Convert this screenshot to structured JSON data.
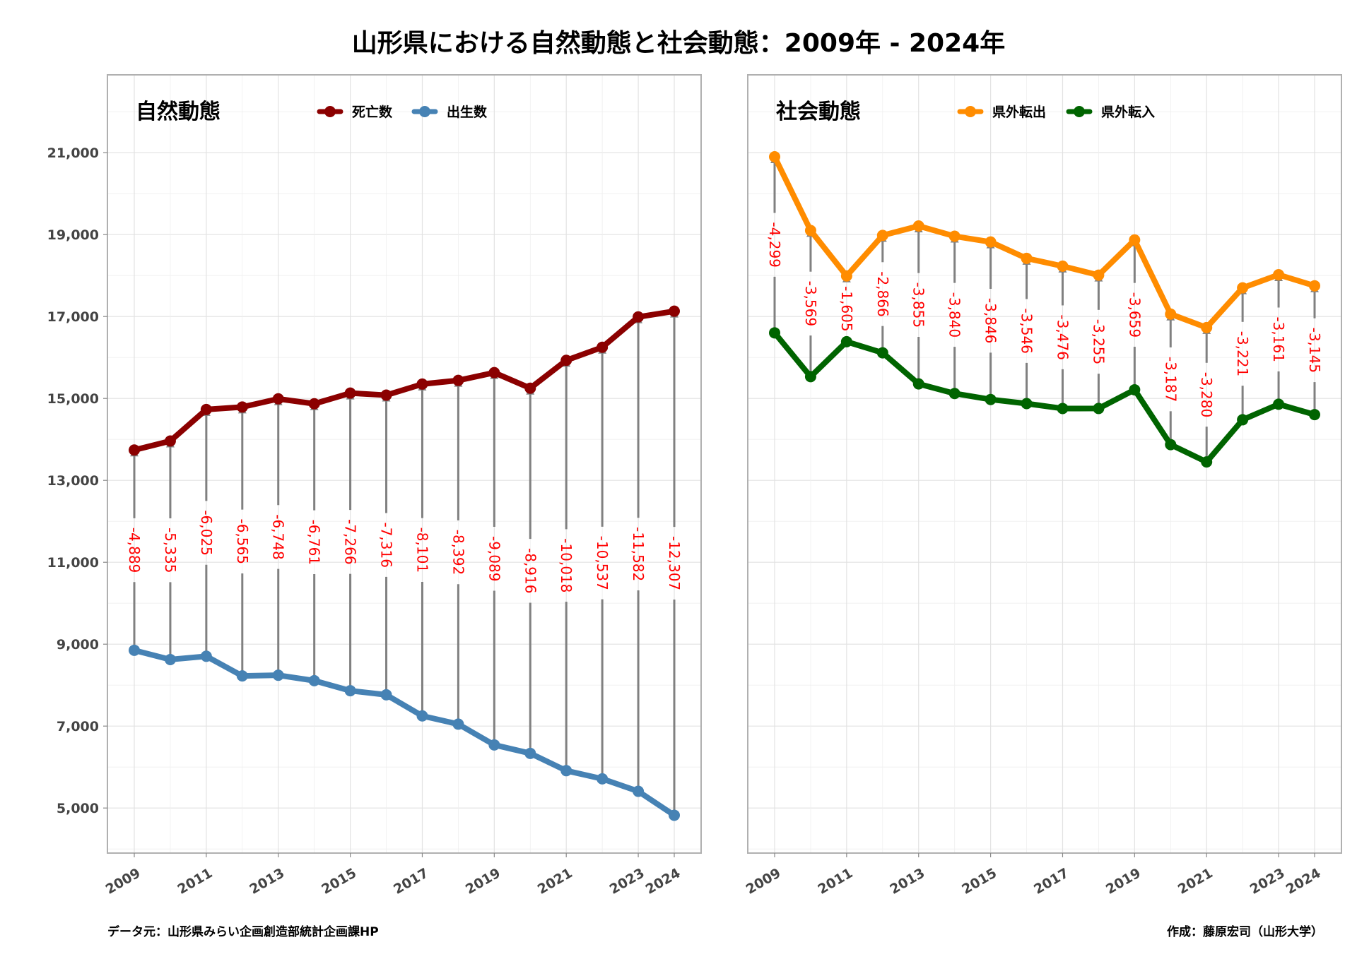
{
  "title": "山形県における自然動態と社会動態：2009年 - 2024年",
  "footer": {
    "source": "データ元：山形県みらい企画創造部統計企画課HP",
    "author": "作成：藤原宏司（山形大学）"
  },
  "chart_data": [
    {
      "type": "line",
      "panel_title": "自然動態",
      "x": [
        2009,
        2010,
        2011,
        2012,
        2013,
        2014,
        2015,
        2016,
        2017,
        2018,
        2019,
        2020,
        2021,
        2022,
        2023,
        2024
      ],
      "x_ticks": [
        "2009",
        "2011",
        "2013",
        "2015",
        "2017",
        "2019",
        "2021",
        "2023",
        "2024"
      ],
      "y_ticks": [
        "5,000",
        "7,000",
        "9,000",
        "11,000",
        "13,000",
        "15,000",
        "17,000",
        "19,000",
        "21,000"
      ],
      "ylim": [
        3900,
        22900
      ],
      "legend_position": "top",
      "series": [
        {
          "name": "死亡数",
          "color": "#8B0000",
          "values": [
            13740,
            13960,
            14730,
            14790,
            14990,
            14870,
            15130,
            15080,
            15350,
            15440,
            15630,
            15250,
            15930,
            16250,
            16990,
            17130
          ]
        },
        {
          "name": "出生数",
          "color": "#4682B4",
          "values": [
            8851,
            8625,
            8705,
            8225,
            8242,
            8109,
            7864,
            7764,
            7249,
            7048,
            6541,
            6334,
            5912,
            5713,
            5408,
            4823
          ]
        }
      ],
      "differences": [
        "-4,889",
        "-5,335",
        "-6,025",
        "-6,565",
        "-6,748",
        "-6,761",
        "-7,266",
        "-7,316",
        "-8,101",
        "-8,392",
        "-9,089",
        "-8,916",
        "-10,018",
        "-10,537",
        "-11,582",
        "-12,307"
      ],
      "grid": true
    },
    {
      "type": "line",
      "panel_title": "社会動態",
      "x": [
        2009,
        2010,
        2011,
        2012,
        2013,
        2014,
        2015,
        2016,
        2017,
        2018,
        2019,
        2020,
        2021,
        2022,
        2023,
        2024
      ],
      "x_ticks": [
        "2009",
        "2011",
        "2013",
        "2015",
        "2017",
        "2019",
        "2021",
        "2023",
        "2024"
      ],
      "ylim": [
        3900,
        22900
      ],
      "legend_position": "top",
      "series": [
        {
          "name": "県外転出",
          "color": "#FF8C00",
          "values": [
            20900,
            19100,
            17990,
            18980,
            19210,
            18960,
            18820,
            18420,
            18230,
            18010,
            18870,
            17060,
            16730,
            17700,
            18020,
            17750
          ]
        },
        {
          "name": "県外転入",
          "color": "#006400",
          "values": [
            16601,
            15531,
            16385,
            16114,
            15355,
            15120,
            14974,
            14874,
            14754,
            14755,
            15211,
            13873,
            13450,
            14479,
            14859,
            14605
          ]
        }
      ],
      "differences": [
        "-4,299",
        "-3,569",
        "-1,605",
        "-2,866",
        "-3,855",
        "-3,840",
        "-3,846",
        "-3,546",
        "-3,476",
        "-3,255",
        "-3,659",
        "-3,187",
        "-3,280",
        "-3,221",
        "-3,161",
        "-3,145"
      ],
      "grid": true
    }
  ]
}
